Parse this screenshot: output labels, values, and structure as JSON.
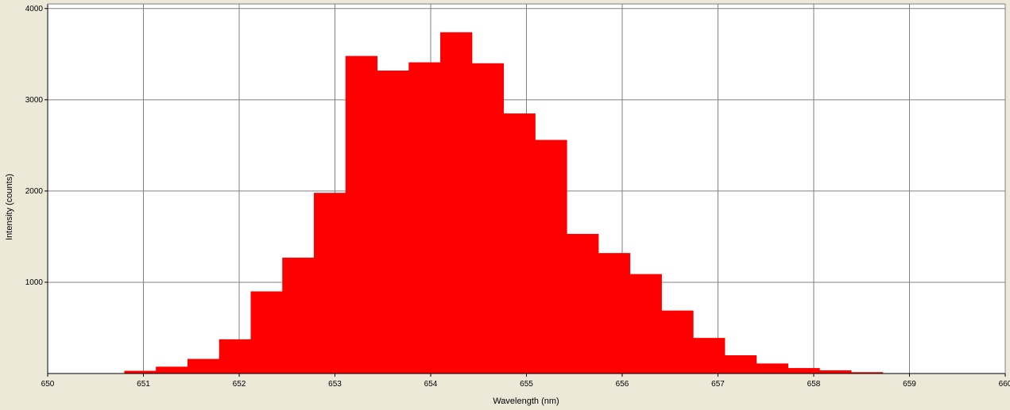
{
  "chart_data": {
    "type": "bar",
    "title": "",
    "xlabel": "Wavelength (nm)",
    "ylabel": "Intensity (counts)",
    "xlim": [
      650,
      660
    ],
    "ylim": [
      0,
      4050
    ],
    "x_ticks": [
      650,
      651,
      652,
      653,
      654,
      655,
      656,
      657,
      658,
      659,
      660
    ],
    "y_ticks": [
      1000,
      2000,
      3000,
      4000
    ],
    "grid": true,
    "legend": "none",
    "bar_color": "#ff0000",
    "bins": [
      {
        "x0": 650.8,
        "x1": 651.13,
        "value": 30
      },
      {
        "x0": 651.13,
        "x1": 651.46,
        "value": 75
      },
      {
        "x0": 651.46,
        "x1": 651.79,
        "value": 160
      },
      {
        "x0": 651.79,
        "x1": 652.12,
        "value": 375
      },
      {
        "x0": 652.12,
        "x1": 652.45,
        "value": 900
      },
      {
        "x0": 652.45,
        "x1": 652.78,
        "value": 1270
      },
      {
        "x0": 652.78,
        "x1": 653.11,
        "value": 1980
      },
      {
        "x0": 653.11,
        "x1": 653.44,
        "value": 3480
      },
      {
        "x0": 653.44,
        "x1": 653.77,
        "value": 3320
      },
      {
        "x0": 653.77,
        "x1": 654.1,
        "value": 3410
      },
      {
        "x0": 654.1,
        "x1": 654.43,
        "value": 3740
      },
      {
        "x0": 654.43,
        "x1": 654.76,
        "value": 3400
      },
      {
        "x0": 654.76,
        "x1": 655.09,
        "value": 2850
      },
      {
        "x0": 655.09,
        "x1": 655.42,
        "value": 2560
      },
      {
        "x0": 655.42,
        "x1": 655.75,
        "value": 1530
      },
      {
        "x0": 655.75,
        "x1": 656.08,
        "value": 1320
      },
      {
        "x0": 656.08,
        "x1": 656.41,
        "value": 1090
      },
      {
        "x0": 656.41,
        "x1": 656.74,
        "value": 690
      },
      {
        "x0": 656.74,
        "x1": 657.07,
        "value": 390
      },
      {
        "x0": 657.07,
        "x1": 657.4,
        "value": 200
      },
      {
        "x0": 657.4,
        "x1": 657.73,
        "value": 110
      },
      {
        "x0": 657.73,
        "x1": 658.06,
        "value": 60
      },
      {
        "x0": 658.06,
        "x1": 658.39,
        "value": 35
      },
      {
        "x0": 658.39,
        "x1": 658.72,
        "value": 15
      }
    ]
  }
}
